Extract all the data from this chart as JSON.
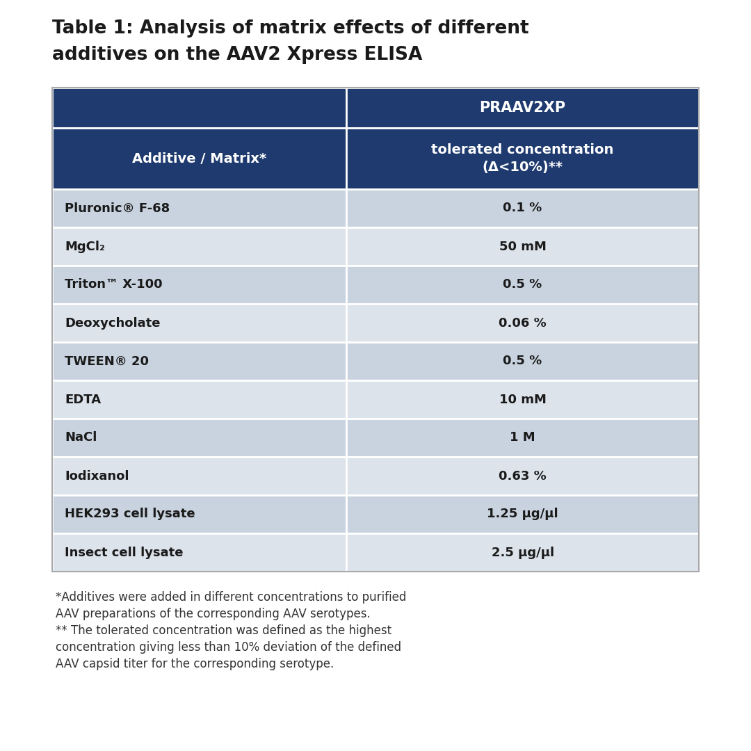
{
  "title_line1": "Table 1: Analysis of matrix effects of different",
  "title_line2": "additives on the AAV2 Xpress ELISA",
  "col1_header1": "Additive / Matrix*",
  "col2_header1": "PRAAV2XP",
  "col2_header2": "tolerated concentration\n(Δ<10%)**",
  "rows": [
    [
      "Pluronic® F-68",
      "0.1 %"
    ],
    [
      "MgCl₂",
      "50 mM"
    ],
    [
      "Triton™ X-100",
      "0.5 %"
    ],
    [
      "Deoxycholate",
      "0.06 %"
    ],
    [
      "TWEEN® 20",
      "0.5 %"
    ],
    [
      "EDTA",
      "10 mM"
    ],
    [
      "NaCl",
      "1 M"
    ],
    [
      "Iodixanol",
      "0.63 %"
    ],
    [
      "HEK293 cell lysate",
      "1.25 μg/μl"
    ],
    [
      "Insect cell lysate",
      "2.5 μg/μl"
    ]
  ],
  "footnotes": [
    "*Additives were added in different concentrations to purified",
    "AAV preparations of the corresponding AAV serotypes.",
    "** The tolerated concentration was defined as the highest",
    "concentration giving less than 10% deviation of the defined",
    "AAV capsid titer for the corresponding serotype."
  ],
  "bg_color": "#ffffff",
  "header_dark_blue": "#1e3a6e",
  "header_text_color": "#ffffff",
  "row_light": "#c9d3df",
  "row_lighter": "#dce3eb",
  "title_color": "#1a1a1a",
  "body_text_color": "#1a1a1a",
  "footnote_color": "#333333",
  "title_fontsize": 19,
  "header1_fontsize": 15,
  "header2_fontsize": 14,
  "data_fontsize": 13,
  "footnote_fontsize": 12
}
